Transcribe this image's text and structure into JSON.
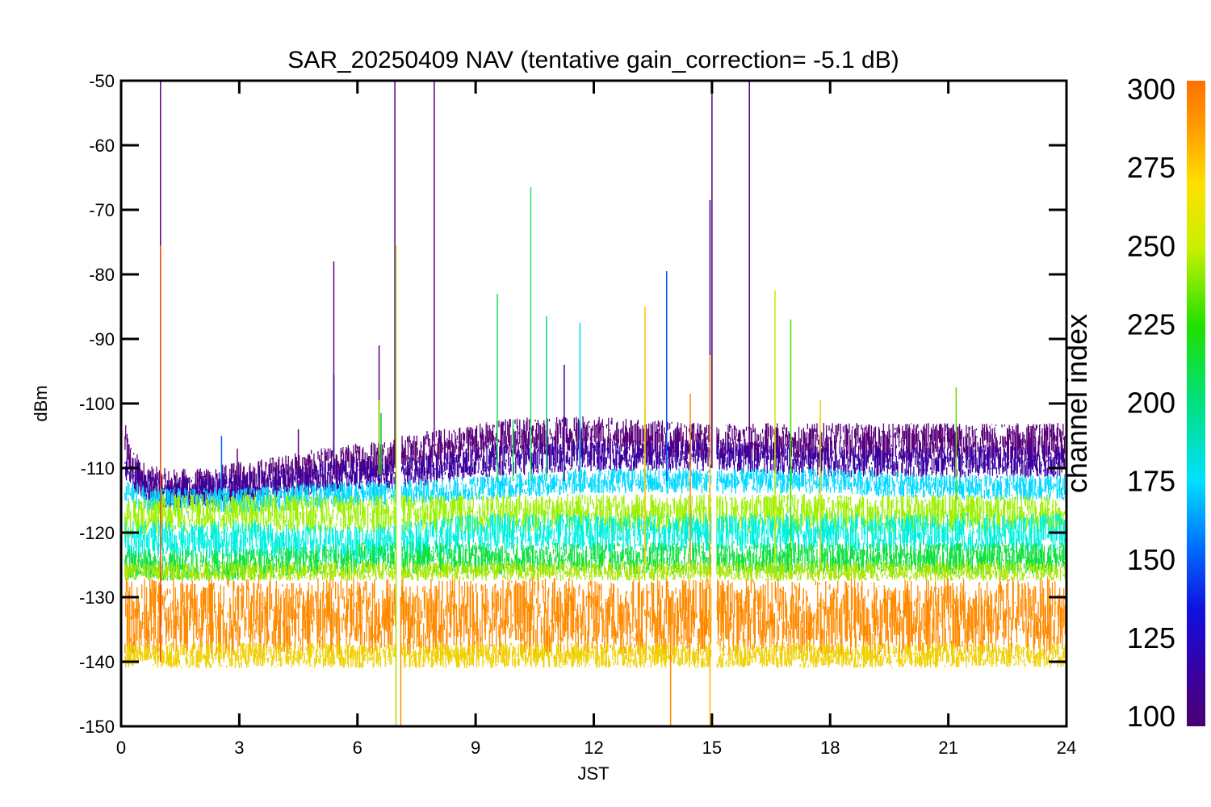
{
  "chart_data": {
    "type": "line",
    "title": "SAR_20250409 NAV (tentative gain_correction= -5.1 dB)",
    "xlabel": "JST",
    "ylabel": "dBm",
    "xlim": [
      0,
      24
    ],
    "ylim": [
      -150,
      -50
    ],
    "x_ticks": [
      "0",
      "3",
      "6",
      "9",
      "12",
      "15",
      "18",
      "21",
      "24"
    ],
    "y_ticks": [
      "-50",
      "-60",
      "-70",
      "-80",
      "-90",
      "-100",
      "-110",
      "-120",
      "-130",
      "-140",
      "-150"
    ],
    "grid": false,
    "data_gaps_x": [
      7.05,
      15.05
    ],
    "colorbar": {
      "label": "channel index",
      "range": [
        100,
        300
      ],
      "ticks": [
        "100",
        "125",
        "150",
        "175",
        "200",
        "225",
        "250",
        "275",
        "300"
      ],
      "colormap": "rainbow (purple-blue-cyan-green-yellow-orange)"
    },
    "bands": [
      {
        "name": "",
        "channel_index": 100,
        "color": "#5a007a",
        "x": [
          0.1,
          0.3,
          0.6,
          1,
          2,
          3,
          4,
          5,
          6,
          7,
          8,
          9,
          10,
          12,
          15,
          18,
          21,
          24
        ],
        "y": [
          -106,
          -110,
          -112,
          -113,
          -113,
          -112,
          -111,
          -110,
          -109,
          -108,
          -107,
          -106,
          -105,
          -105,
          -106,
          -106,
          -106,
          -106
        ],
        "spread": 3
      },
      {
        "name": "",
        "channel_index": 115,
        "color": "#3a00a0",
        "x": [
          0.1,
          1,
          3,
          6,
          7,
          9,
          12,
          15,
          18,
          21,
          24
        ],
        "y": [
          -110,
          -114,
          -113,
          -111,
          -111,
          -109,
          -108,
          -108,
          -109,
          -109,
          -109
        ],
        "spread": 2.5
      },
      {
        "name": "",
        "channel_index": 175,
        "color": "#00d8ff",
        "x": [
          0.1,
          1,
          3,
          6,
          7,
          9,
          12,
          15,
          18,
          21,
          24
        ],
        "y": [
          -114,
          -115,
          -115,
          -114,
          -114,
          -113,
          -112,
          -112,
          -112,
          -113,
          -113
        ],
        "spread": 2
      },
      {
        "name": "",
        "channel_index": 250,
        "color": "#9cf000",
        "x": [
          0.1,
          1,
          3,
          6,
          9,
          12,
          15,
          18,
          21,
          24
        ],
        "y": [
          -118,
          -117,
          -117,
          -117,
          -117,
          -117,
          -117,
          -117,
          -117,
          -117
        ],
        "spread": 3
      },
      {
        "name": "",
        "channel_index": 180,
        "color": "#00f0e0",
        "x": [
          0.1,
          1,
          3,
          6,
          9,
          12,
          15,
          18,
          21,
          24
        ],
        "y": [
          -121,
          -121,
          -121,
          -122,
          -120,
          -120,
          -120,
          -120,
          -120,
          -120
        ],
        "spread": 3
      },
      {
        "name": "",
        "channel_index": 225,
        "color": "#10e040",
        "x": [
          0.1,
          1,
          3,
          6,
          9,
          12,
          15,
          18,
          21,
          24
        ],
        "y": [
          -125,
          -125,
          -125,
          -124,
          -124,
          -124,
          -124,
          -124,
          -124,
          -124
        ],
        "spread": 2.5
      },
      {
        "name": "",
        "channel_index": 250,
        "color": "#a8e600",
        "x": [
          0.1,
          1,
          3,
          6,
          9,
          12,
          15,
          18,
          21,
          24
        ],
        "y": [
          -126,
          -126,
          -126,
          -126,
          -126,
          -126,
          -126,
          -126,
          -126,
          -126
        ],
        "spread": 1.5
      },
      {
        "name": "",
        "channel_index": 290,
        "color": "#ff8a00",
        "x": [
          0.1,
          1,
          3,
          6,
          9,
          12,
          15,
          18,
          21,
          24
        ],
        "y": [
          -133,
          -133,
          -133,
          -133,
          -133,
          -133,
          -133,
          -133,
          -133,
          -133
        ],
        "spread": 6
      },
      {
        "name": "",
        "channel_index": 270,
        "color": "#f0d000",
        "x": [
          0.1,
          1,
          3,
          6,
          9,
          12,
          15,
          18,
          21,
          24
        ],
        "y": [
          -139,
          -139,
          -139,
          -139,
          -139,
          -139,
          -139,
          -139,
          -139,
          -139
        ],
        "spread": 2
      }
    ],
    "spikes": [
      {
        "x": 1.0,
        "y_top": -50,
        "y_bottom": -140,
        "color": "#5a007a"
      },
      {
        "x": 1.0,
        "y_top": -75.5,
        "y_bottom": -140,
        "color": "#ff5000"
      },
      {
        "x": 2.55,
        "y_top": -105,
        "y_bottom": -113,
        "color": "#0060ff"
      },
      {
        "x": 2.95,
        "y_top": -107,
        "y_bottom": -113,
        "color": "#5a007a"
      },
      {
        "x": 4.5,
        "y_top": -104,
        "y_bottom": -111,
        "color": "#5a007a"
      },
      {
        "x": 5.4,
        "y_top": -78,
        "y_bottom": -111,
        "color": "#5a007a"
      },
      {
        "x": 5.4,
        "y_top": -95.5,
        "y_bottom": -111,
        "color": "#3a00a0"
      },
      {
        "x": 6.55,
        "y_top": -91,
        "y_bottom": -111,
        "color": "#5a007a"
      },
      {
        "x": 6.55,
        "y_top": -99.5,
        "y_bottom": -111,
        "color": "#90e000"
      },
      {
        "x": 6.6,
        "y_top": -101.5,
        "y_bottom": -111,
        "color": "#10c040"
      },
      {
        "x": 6.95,
        "y_top": -50,
        "y_bottom": -110,
        "color": "#5a007a"
      },
      {
        "x": 6.98,
        "y_top": -75.5,
        "y_bottom": -150,
        "color": "#a8e600"
      },
      {
        "x": 7.1,
        "y_top": -130,
        "y_bottom": -150,
        "color": "#ff8a00"
      },
      {
        "x": 7.95,
        "y_top": -50,
        "y_bottom": -108,
        "color": "#5a007a"
      },
      {
        "x": 9.55,
        "y_top": -83,
        "y_bottom": -112,
        "color": "#20e060"
      },
      {
        "x": 9.95,
        "y_top": -102.5,
        "y_bottom": -112,
        "color": "#20e060"
      },
      {
        "x": 10.4,
        "y_top": -66.5,
        "y_bottom": -112,
        "color": "#20e060"
      },
      {
        "x": 10.8,
        "y_top": -86.5,
        "y_bottom": -112,
        "color": "#10d080"
      },
      {
        "x": 11.25,
        "y_top": -94,
        "y_bottom": -112,
        "color": "#3a00a0"
      },
      {
        "x": 11.65,
        "y_top": -87.5,
        "y_bottom": -112,
        "color": "#00d8ff"
      },
      {
        "x": 13.3,
        "y_top": -85,
        "y_bottom": -125,
        "color": "#ffc000"
      },
      {
        "x": 13.3,
        "y_top": -100.5,
        "y_bottom": -125,
        "color": "#f0d000"
      },
      {
        "x": 13.85,
        "y_top": -79.5,
        "y_bottom": -112,
        "color": "#0050ff"
      },
      {
        "x": 13.95,
        "y_top": -130,
        "y_bottom": -150,
        "color": "#ff8a00"
      },
      {
        "x": 14.45,
        "y_top": -98.5,
        "y_bottom": -125,
        "color": "#ff8a00"
      },
      {
        "x": 14.95,
        "y_top": -68.5,
        "y_bottom": -110,
        "color": "#3a00a0"
      },
      {
        "x": 15.0,
        "y_top": -50,
        "y_bottom": -110,
        "color": "#5a007a"
      },
      {
        "x": 14.95,
        "y_top": -92.5,
        "y_bottom": -150,
        "color": "#ffb000"
      },
      {
        "x": 15.95,
        "y_top": -50,
        "y_bottom": -108,
        "color": "#5a007a"
      },
      {
        "x": 16.6,
        "y_top": -82.5,
        "y_bottom": -125,
        "color": "#d0e800"
      },
      {
        "x": 17.0,
        "y_top": -87,
        "y_bottom": -125,
        "color": "#40e000"
      },
      {
        "x": 17.75,
        "y_top": -99.5,
        "y_bottom": -125,
        "color": "#f0d000"
      },
      {
        "x": 21.2,
        "y_top": -97.5,
        "y_bottom": -115,
        "color": "#60e000"
      }
    ]
  }
}
